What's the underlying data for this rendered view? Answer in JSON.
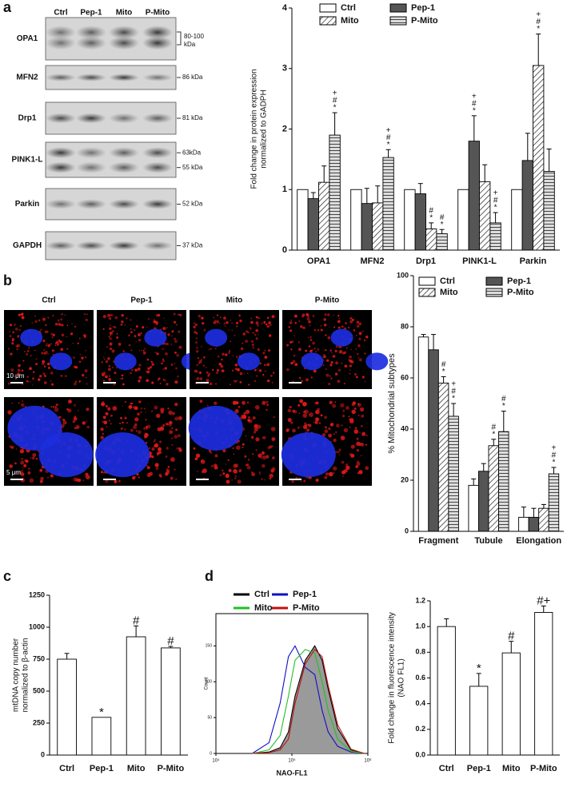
{
  "panels": [
    "a",
    "b",
    "c",
    "d"
  ],
  "blot": {
    "lanes": [
      "Ctrl",
      "Pep-1",
      "Mito",
      "P-Mito"
    ],
    "rows": [
      {
        "label": "OPA1",
        "kda": [
          "80-100",
          "kDa"
        ]
      },
      {
        "label": "MFN2",
        "kda": [
          "86 kDa"
        ]
      },
      {
        "label": "Drp1",
        "kda": [
          "81 kDa"
        ]
      },
      {
        "label": "PINK1-L",
        "kda": [
          "63kDa",
          "55 kDa"
        ]
      },
      {
        "label": "Parkin",
        "kda": [
          "52 kDa"
        ]
      },
      {
        "label": "GAPDH",
        "kda": [
          "37 kDa"
        ]
      }
    ]
  },
  "microscopy": {
    "columns": [
      "Ctrl",
      "Pep-1",
      "Mito",
      "P-Mito"
    ],
    "scale_bars": [
      "10 μm",
      "5 μm"
    ]
  },
  "chart_data": [
    {
      "type": "bar",
      "y_label": [
        "Fold change in protein expression",
        "normalized to GADPH"
      ],
      "categories": [
        "OPA1",
        "MFN2",
        "Drp1",
        "PINK1-L",
        "Parkin"
      ],
      "ylim": [
        0,
        4
      ],
      "yticks": [
        0,
        1,
        2,
        3,
        4
      ],
      "legend": "top",
      "series": [
        {
          "name": "Ctrl",
          "color": "#ffffff",
          "values": [
            1,
            1,
            1,
            1,
            1
          ],
          "errors": [
            0,
            0,
            0,
            0,
            0
          ],
          "annotations": [
            [],
            [],
            [],
            [],
            []
          ]
        },
        {
          "name": "Pep-1",
          "color": "#555555",
          "values": [
            0.85,
            0.77,
            0.93,
            1.8,
            1.48
          ],
          "errors": [
            0.1,
            0.25,
            0.17,
            0.42,
            0.45
          ],
          "annotations": [
            [],
            [],
            [],
            [
              "+",
              "#",
              "*"
            ],
            []
          ]
        },
        {
          "name": "Mito",
          "color": "#ffffff",
          "pattern": "diagonal",
          "values": [
            1.12,
            0.78,
            0.35,
            1.13,
            3.05
          ],
          "errors": [
            0.27,
            0.28,
            0.1,
            0.28,
            0.52
          ],
          "annotations": [
            [],
            [],
            [
              "#",
              "*"
            ],
            [],
            [
              "+",
              "#",
              "*"
            ]
          ]
        },
        {
          "name": "P-Mito",
          "color": "#cccccc",
          "pattern": "horizontal",
          "values": [
            1.9,
            1.53,
            0.27,
            0.45,
            1.3
          ],
          "errors": [
            0.37,
            0.13,
            0.07,
            0.17,
            0.37
          ],
          "annotations": [
            [
              "+",
              "#",
              "*"
            ],
            [
              "+",
              "#",
              "*"
            ],
            [
              "#",
              "*"
            ],
            [
              "+",
              "#",
              "*"
            ],
            []
          ]
        }
      ]
    },
    {
      "type": "bar",
      "y_label": [
        "% Mitochondrial subtypes"
      ],
      "categories": [
        "Fragment",
        "Tubule",
        "Elongation"
      ],
      "ylim": [
        0,
        100
      ],
      "yticks": [
        0,
        20,
        40,
        60,
        80,
        100
      ],
      "legend": "top",
      "series": [
        {
          "name": "Ctrl",
          "color": "#ffffff",
          "values": [
            76,
            18,
            5.5
          ],
          "errors": [
            1,
            2.5,
            4
          ],
          "annotations": [
            [],
            [],
            []
          ]
        },
        {
          "name": "Pep-1",
          "color": "#555555",
          "values": [
            71,
            23.5,
            5.5
          ],
          "errors": [
            6,
            3,
            3.5
          ],
          "annotations": [
            [],
            [],
            []
          ]
        },
        {
          "name": "Mito",
          "color": "#ffffff",
          "pattern": "diagonal",
          "values": [
            58,
            33.5,
            9
          ],
          "errors": [
            2.5,
            2.5,
            1.5
          ],
          "annotations": [
            [
              "#",
              "*"
            ],
            [
              "#",
              "*"
            ],
            []
          ]
        },
        {
          "name": "P-Mito",
          "color": "#cccccc",
          "pattern": "horizontal",
          "values": [
            45,
            39,
            22.5
          ],
          "errors": [
            5,
            8,
            2.5
          ],
          "annotations": [
            [
              "+",
              "#",
              "*"
            ],
            [
              "#",
              "*"
            ],
            [
              "+",
              "#",
              "*"
            ]
          ]
        }
      ]
    },
    {
      "type": "bar",
      "y_label": [
        "mtDNA copy number",
        "normalized to β-actin"
      ],
      "categories": [
        "Ctrl",
        "Pep-1",
        "Mito",
        "P-Mito"
      ],
      "ylim": [
        0,
        1250
      ],
      "yticks": [
        0,
        250,
        500,
        750,
        1000,
        1250
      ],
      "color": "#ffffff",
      "values": [
        750,
        295,
        925,
        838
      ],
      "errors": [
        45,
        0,
        85,
        12
      ],
      "annotations": [
        [],
        [
          "*"
        ],
        [
          "#"
        ],
        [
          "#"
        ]
      ]
    },
    {
      "type": "line",
      "x_label": "NAO-FL1",
      "y_label": [
        "Count"
      ],
      "xscale": "log",
      "xlim": [
        10000,
        1000000
      ],
      "xticks": [
        {
          "value": 10000,
          "label": "10⁴"
        },
        {
          "value": 100000,
          "label": "10⁵"
        },
        {
          "value": 1000000,
          "label": "10⁶"
        }
      ],
      "ylim": [
        0,
        195
      ],
      "yticks": [
        0,
        50,
        100,
        150
      ],
      "legend": "top",
      "x": [
        30000,
        50000,
        70000,
        90000,
        110000,
        150000,
        200000,
        250000,
        300000,
        400000,
        600000,
        900000
      ],
      "series": [
        {
          "name": "Ctrl",
          "color": "#000000",
          "fill": "#9a9a9a",
          "values": [
            0,
            2,
            8,
            30,
            80,
            130,
            150,
            130,
            90,
            35,
            5,
            0
          ]
        },
        {
          "name": "Pep-1",
          "color": "#1010c0",
          "values": [
            0,
            15,
            70,
            135,
            150,
            120,
            110,
            60,
            30,
            10,
            2,
            0
          ]
        },
        {
          "name": "Mito",
          "color": "#20c020",
          "values": [
            0,
            5,
            25,
            80,
            130,
            145,
            140,
            100,
            60,
            20,
            3,
            0
          ]
        },
        {
          "name": "P-Mito",
          "color": "#c01010",
          "values": [
            0,
            1,
            5,
            20,
            70,
            125,
            145,
            135,
            95,
            40,
            6,
            0
          ]
        }
      ]
    },
    {
      "type": "bar",
      "y_label": [
        "Fold change in fluorescence intensity",
        "(NAO FL1)"
      ],
      "categories": [
        "Ctrl",
        "Pep-1",
        "Mito",
        "P-Mito"
      ],
      "ylim": [
        0,
        1.2
      ],
      "yticks": [
        {
          "value": 0,
          "label": "0.0"
        },
        0.2,
        0.4,
        0.6,
        0.8,
        {
          "value": 1,
          "label": "1.0"
        },
        1.2
      ],
      "color": "#ffffff",
      "values": [
        1.0,
        0.535,
        0.795,
        1.11
      ],
      "errors": [
        0.06,
        0.1,
        0.09,
        0.05
      ],
      "annotations": [
        [],
        [
          "*"
        ],
        [
          "#"
        ],
        [
          "#+"
        ]
      ]
    }
  ]
}
